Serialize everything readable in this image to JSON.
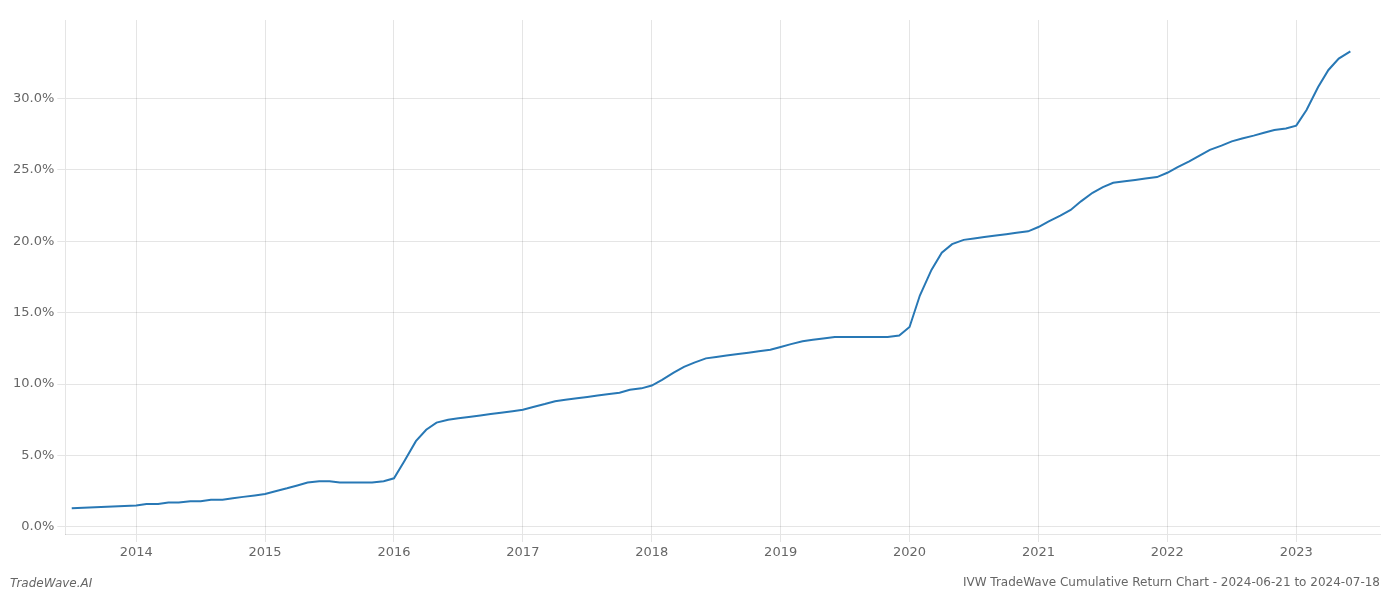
{
  "chart_data": {
    "type": "line",
    "title": "IVW TradeWave Cumulative Return Chart - 2024-06-21 to 2024-07-18",
    "annotations": [
      "TradeWave.AI"
    ],
    "color": "#2878b5",
    "grid": true,
    "xlim": [
      2013.45,
      2023.65
    ],
    "ylim": [
      -0.005,
      0.355
    ],
    "xticks": [
      2014,
      2015,
      2016,
      2017,
      2018,
      2019,
      2020,
      2021,
      2022,
      2023
    ],
    "yticks": [
      {
        "value": 0.0,
        "label": "0.0%"
      },
      {
        "value": 0.05,
        "label": "5.0%"
      },
      {
        "value": 0.1,
        "label": "10.0%"
      },
      {
        "value": 0.15,
        "label": "15.0%"
      },
      {
        "value": 0.2,
        "label": "20.0%"
      },
      {
        "value": 0.25,
        "label": "25.0%"
      },
      {
        "value": 0.3,
        "label": "30.0%"
      }
    ],
    "x": [
      2013.5,
      2014.0,
      2014.08,
      2014.17,
      2014.25,
      2014.33,
      2014.42,
      2014.5,
      2014.58,
      2014.67,
      2014.75,
      2014.83,
      2014.92,
      2015.0,
      2015.08,
      2015.17,
      2015.25,
      2015.33,
      2015.42,
      2015.5,
      2015.58,
      2015.67,
      2015.75,
      2015.83,
      2015.92,
      2016.0,
      2016.08,
      2016.17,
      2016.25,
      2016.33,
      2016.42,
      2016.5,
      2016.58,
      2016.67,
      2016.75,
      2016.83,
      2016.92,
      2017.0,
      2017.08,
      2017.17,
      2017.25,
      2017.33,
      2017.42,
      2017.5,
      2017.58,
      2017.67,
      2017.75,
      2017.83,
      2017.92,
      2018.0,
      2018.08,
      2018.17,
      2018.25,
      2018.33,
      2018.42,
      2018.5,
      2018.58,
      2018.67,
      2018.75,
      2018.83,
      2018.92,
      2019.0,
      2019.08,
      2019.17,
      2019.25,
      2019.33,
      2019.42,
      2019.5,
      2019.58,
      2019.67,
      2019.75,
      2019.83,
      2019.92,
      2020.0,
      2020.08,
      2020.17,
      2020.25,
      2020.33,
      2020.42,
      2020.5,
      2020.58,
      2020.67,
      2020.75,
      2020.83,
      2020.92,
      2021.0,
      2021.08,
      2021.17,
      2021.25,
      2021.33,
      2021.42,
      2021.5,
      2021.58,
      2021.67,
      2021.75,
      2021.83,
      2021.92,
      2022.0,
      2022.08,
      2022.17,
      2022.25,
      2022.33,
      2022.42,
      2022.5,
      2022.58,
      2022.67,
      2022.75,
      2022.83,
      2022.92,
      2023.0,
      2023.08,
      2023.17,
      2023.25,
      2023.33,
      2023.42
    ],
    "values": [
      0.013,
      0.015,
      0.016,
      0.016,
      0.017,
      0.017,
      0.018,
      0.018,
      0.019,
      0.019,
      0.02,
      0.021,
      0.022,
      0.023,
      0.025,
      0.027,
      0.029,
      0.031,
      0.032,
      0.032,
      0.031,
      0.031,
      0.031,
      0.031,
      0.032,
      0.034,
      0.046,
      0.06,
      0.068,
      0.073,
      0.075,
      0.076,
      0.077,
      0.078,
      0.079,
      0.08,
      0.081,
      0.082,
      0.084,
      0.086,
      0.088,
      0.089,
      0.09,
      0.091,
      0.092,
      0.093,
      0.094,
      0.096,
      0.097,
      0.099,
      0.103,
      0.108,
      0.112,
      0.115,
      0.118,
      0.119,
      0.12,
      0.121,
      0.122,
      0.123,
      0.124,
      0.126,
      0.128,
      0.13,
      0.131,
      0.132,
      0.133,
      0.133,
      0.133,
      0.133,
      0.133,
      0.133,
      0.134,
      0.14,
      0.162,
      0.18,
      0.192,
      0.198,
      0.201,
      0.202,
      0.203,
      0.204,
      0.205,
      0.206,
      0.207,
      0.21,
      0.214,
      0.218,
      0.222,
      0.228,
      0.234,
      0.238,
      0.241,
      0.242,
      0.243,
      0.244,
      0.245,
      0.248,
      0.252,
      0.256,
      0.26,
      0.264,
      0.267,
      0.27,
      0.272,
      0.274,
      0.276,
      0.278,
      0.279,
      0.281,
      0.292,
      0.308,
      0.32,
      0.328,
      0.333
    ]
  }
}
